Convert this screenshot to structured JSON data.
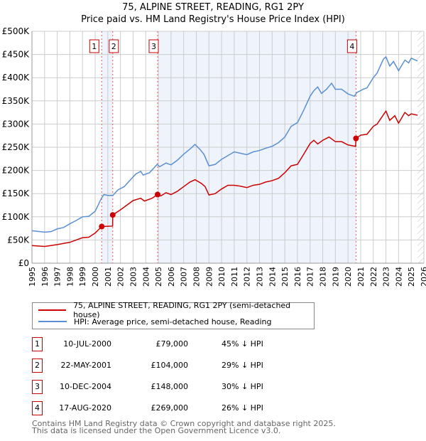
{
  "chart_data": {
    "type": "line",
    "title": "75, ALPINE STREET, READING, RG1 2PY",
    "subtitle": "Price paid vs. HM Land Registry's House Price Index (HPI)",
    "xlim": [
      1995,
      2026
    ],
    "ylim": [
      0,
      500000
    ],
    "x_ticks": [
      "1995",
      "1996",
      "1997",
      "1998",
      "1999",
      "2000",
      "2001",
      "2002",
      "2003",
      "2004",
      "2005",
      "2006",
      "2007",
      "2008",
      "2009",
      "2010",
      "2011",
      "2012",
      "2013",
      "2014",
      "2015",
      "2016",
      "2017",
      "2018",
      "2019",
      "2020",
      "2021",
      "2022",
      "2023",
      "2024",
      "2025",
      "2026"
    ],
    "y_ticks": [
      {
        "v": 0,
        "label": "£0"
      },
      {
        "v": 50000,
        "label": "£50K"
      },
      {
        "v": 100000,
        "label": "£100K"
      },
      {
        "v": 150000,
        "label": "£150K"
      },
      {
        "v": 200000,
        "label": "£200K"
      },
      {
        "v": 250000,
        "label": "£250K"
      },
      {
        "v": 300000,
        "label": "£300K"
      },
      {
        "v": 350000,
        "label": "£350K"
      },
      {
        "v": 400000,
        "label": "£400K"
      },
      {
        "v": 450000,
        "label": "£450K"
      },
      {
        "v": 500000,
        "label": "£500K"
      }
    ],
    "grid": true,
    "series": [
      {
        "name": "75, ALPINE STREET, READING, RG1 2PY (semi-detached house)",
        "color": "#cc0000",
        "x": [
          1995,
          1996,
          1997,
          1998,
          1998.5,
          1999,
          1999.5,
          2000,
          2000.52,
          2001.38,
          2001.39,
          2002,
          2002.5,
          2003,
          2003.6,
          2003.9,
          2004.5,
          2004.94,
          2005.2,
          2005.6,
          2006,
          2006.5,
          2007,
          2007.5,
          2007.9,
          2008.4,
          2008.7,
          2009,
          2009.5,
          2010,
          2010.5,
          2011,
          2011.5,
          2012,
          2012.5,
          2013,
          2013.5,
          2014,
          2014.5,
          2015,
          2015.5,
          2016,
          2016.5,
          2017,
          2017.3,
          2017.6,
          2018,
          2018.5,
          2019,
          2019.5,
          2020,
          2020.6,
          2020.63,
          2021,
          2021.5,
          2022,
          2022.3,
          2022.8,
          2023,
          2023.3,
          2023.7,
          2024,
          2024.5,
          2024.8,
          2025,
          2025.5
        ],
        "y": [
          38,
          36,
          40,
          45,
          50,
          55,
          56,
          65,
          79,
          80,
          104,
          115,
          125,
          135,
          140,
          134,
          140,
          148,
          145,
          152,
          148,
          155,
          165,
          175,
          180,
          172,
          165,
          147,
          150,
          160,
          168,
          168,
          166,
          163,
          168,
          170,
          175,
          178,
          183,
          195,
          210,
          213,
          235,
          258,
          265,
          257,
          265,
          272,
          262,
          262,
          255,
          252,
          269,
          276,
          278,
          295,
          300,
          320,
          328,
          308,
          318,
          302,
          325,
          318,
          322,
          319
        ],
        "y_unit": "thousand GBP"
      },
      {
        "name": "HPI: Average price, semi-detached house, Reading",
        "color": "#5b8fd4",
        "x": [
          1995,
          1996,
          1996.5,
          1997,
          1997.5,
          1998,
          1998.5,
          1999,
          1999.5,
          2000,
          2000.5,
          2000.7,
          2001,
          2001.4,
          2001.8,
          2002.3,
          2002.8,
          2003.2,
          2003.6,
          2003.8,
          2004.3,
          2004.9,
          2005.1,
          2005.6,
          2006,
          2006.5,
          2007,
          2007.5,
          2007.9,
          2008.3,
          2008.6,
          2009,
          2009.5,
          2010,
          2010.5,
          2011,
          2011.5,
          2012,
          2012.5,
          2013,
          2013.5,
          2014,
          2014.5,
          2015,
          2015.5,
          2016,
          2016.5,
          2017,
          2017.3,
          2017.6,
          2017.9,
          2018.3,
          2018.7,
          2019,
          2019.5,
          2020,
          2020.5,
          2020.7,
          2021.2,
          2021.5,
          2022,
          2022.3,
          2022.8,
          2023,
          2023.3,
          2023.6,
          2024,
          2024.5,
          2024.8,
          2025,
          2025.5
        ],
        "y": [
          70,
          67,
          68,
          74,
          77,
          85,
          92,
          100,
          101,
          112,
          140,
          148,
          146,
          146,
          158,
          165,
          180,
          192,
          198,
          190,
          195,
          213,
          208,
          216,
          212,
          222,
          235,
          246,
          256,
          245,
          235,
          210,
          213,
          224,
          232,
          240,
          237,
          234,
          240,
          243,
          248,
          252,
          260,
          272,
          295,
          303,
          330,
          360,
          372,
          380,
          366,
          375,
          388,
          375,
          375,
          365,
          360,
          368,
          375,
          378,
          400,
          410,
          440,
          445,
          425,
          435,
          415,
          438,
          432,
          442,
          436
        ],
        "y_unit": "thousand GBP"
      }
    ],
    "sales": [
      {
        "id": "1",
        "x": 2000.52,
        "price": 79000
      },
      {
        "id": "2",
        "x": 2001.39,
        "price": 104000
      },
      {
        "id": "3",
        "x": 2004.94,
        "price": 148000
      },
      {
        "id": "4",
        "x": 2020.63,
        "price": 269000
      }
    ],
    "forecast_from": 2025.5
  },
  "legend": {
    "red": "75, ALPINE STREET, READING, RG1 2PY (semi-detached house)",
    "blue": "HPI: Average price, semi-detached house, Reading"
  },
  "transactions": [
    {
      "id": "1",
      "date": "10-JUL-2000",
      "price": "£79,000",
      "hpi": "45% ↓ HPI"
    },
    {
      "id": "2",
      "date": "22-MAY-2001",
      "price": "£104,000",
      "hpi": "29% ↓ HPI"
    },
    {
      "id": "3",
      "date": "10-DEC-2004",
      "price": "£148,000",
      "hpi": "30% ↓ HPI"
    },
    {
      "id": "4",
      "date": "17-AUG-2020",
      "price": "£269,000",
      "hpi": "26% ↓ HPI"
    }
  ],
  "footer": {
    "line1": "Contains HM Land Registry data © Crown copyright and database right 2025.",
    "line2": "This data is licensed under the Open Government Licence v3.0."
  }
}
